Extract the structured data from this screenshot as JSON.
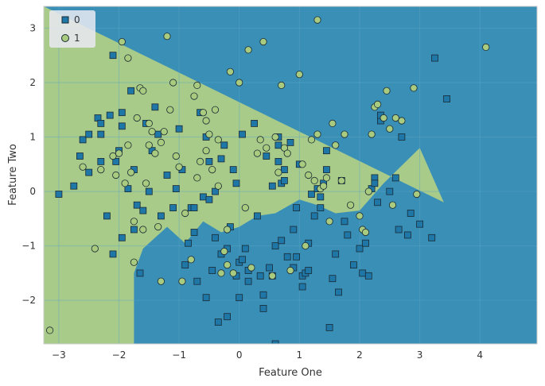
{
  "chart_data": {
    "type": "scatter",
    "title": "",
    "xlabel": "Feature One",
    "ylabel": "Feature Two",
    "xlim": [
      -3.25,
      4.95
    ],
    "ylim": [
      -2.8,
      3.4
    ],
    "xticks": [
      -3,
      -2,
      -1,
      0,
      1,
      2,
      3,
      4
    ],
    "xtick_labels": [
      "−3",
      "−2",
      "−1",
      "0",
      "1",
      "2",
      "3",
      "4"
    ],
    "yticks": [
      -2,
      -1,
      0,
      1,
      2,
      3
    ],
    "ytick_labels": [
      "−2",
      "−1",
      "0",
      "1",
      "2",
      "3"
    ],
    "grid": true,
    "legend_position": "top-left",
    "background_regions": {
      "class_0_color": "#3a8fb7",
      "class_1_color": "#a8cb8a",
      "boundary": [
        [
          3.4,
          -0.2
        ],
        [
          3.0,
          0.8
        ],
        [
          2.4,
          0.15
        ],
        [
          2.0,
          -0.35
        ],
        [
          1.6,
          -0.4
        ],
        [
          1.3,
          -0.25
        ],
        [
          1.0,
          -0.15
        ],
        [
          0.6,
          -0.4
        ],
        [
          0.3,
          -0.45
        ],
        [
          0.0,
          -0.65
        ],
        [
          -0.3,
          -0.75
        ],
        [
          -0.6,
          -0.55
        ],
        [
          -0.9,
          -0.95
        ],
        [
          -1.2,
          -0.65
        ],
        [
          -1.4,
          -0.85
        ],
        [
          -1.6,
          -1.05
        ],
        [
          -1.75,
          -1.5
        ],
        [
          -1.75,
          -2.8
        ]
      ]
    },
    "series": [
      {
        "name": "0",
        "marker": "square",
        "color": "#1f77a8",
        "points": [
          [
            -3.0,
            -0.05
          ],
          [
            -2.75,
            0.1
          ],
          [
            -2.65,
            0.65
          ],
          [
            -2.6,
            0.95
          ],
          [
            -2.5,
            1.05
          ],
          [
            -2.35,
            1.35
          ],
          [
            -2.3,
            1.25
          ],
          [
            -2.3,
            0.55
          ],
          [
            -2.3,
            1.05
          ],
          [
            -2.15,
            1.4
          ],
          [
            -2.1,
            2.5
          ],
          [
            -2.1,
            -1.15
          ],
          [
            -2.05,
            0.55
          ],
          [
            -2.0,
            0.75
          ],
          [
            -1.95,
            1.45
          ],
          [
            -1.95,
            1.2
          ],
          [
            -1.95,
            -0.85
          ],
          [
            -1.8,
            1.85
          ],
          [
            -1.75,
            0.4
          ],
          [
            -1.75,
            -0.7
          ],
          [
            -1.7,
            -0.25
          ],
          [
            -1.65,
            -1.5
          ],
          [
            -1.6,
            -0.35
          ],
          [
            -1.55,
            1.25
          ],
          [
            -1.5,
            0.0
          ],
          [
            -1.45,
            0.75
          ],
          [
            -1.4,
            1.55
          ],
          [
            -1.35,
            1.05
          ],
          [
            -1.3,
            -0.45
          ],
          [
            -1.2,
            0.3
          ],
          [
            -1.1,
            -0.3
          ],
          [
            -1.05,
            0.05
          ],
          [
            -1.0,
            1.15
          ],
          [
            -0.95,
            0.4
          ],
          [
            -0.9,
            -1.35
          ],
          [
            -0.85,
            -0.95
          ],
          [
            -0.8,
            -0.3
          ],
          [
            -0.75,
            -0.75
          ],
          [
            -0.7,
            -1.65
          ],
          [
            -0.65,
            1.45
          ],
          [
            -0.6,
            -0.1
          ],
          [
            -0.55,
            1.0
          ],
          [
            -0.5,
            0.55
          ],
          [
            -0.5,
            -0.15
          ],
          [
            -0.45,
            -1.45
          ],
          [
            -0.4,
            0.0
          ],
          [
            -0.4,
            -0.85
          ],
          [
            -0.35,
            -2.4
          ],
          [
            -0.3,
            -1.15
          ],
          [
            -0.3,
            0.6
          ],
          [
            -0.25,
            0.85
          ],
          [
            -0.2,
            -1.05
          ],
          [
            -0.15,
            -0.65
          ],
          [
            -0.1,
            0.4
          ],
          [
            -0.05,
            0.15
          ],
          [
            -0.05,
            -1.55
          ],
          [
            0.0,
            -1.3
          ],
          [
            0.0,
            -1.95
          ],
          [
            0.05,
            1.05
          ],
          [
            0.05,
            -1.25
          ],
          [
            0.1,
            -1.05
          ],
          [
            0.15,
            -1.45
          ],
          [
            0.15,
            -1.65
          ],
          [
            0.25,
            1.25
          ],
          [
            0.3,
            -0.45
          ],
          [
            0.35,
            -1.55
          ],
          [
            0.4,
            -1.9
          ],
          [
            0.4,
            -2.15
          ],
          [
            0.45,
            0.65
          ],
          [
            0.5,
            -1.4
          ],
          [
            0.55,
            0.1
          ],
          [
            0.6,
            -1.0
          ],
          [
            0.65,
            1.0
          ],
          [
            0.65,
            0.85
          ],
          [
            0.65,
            0.55
          ],
          [
            0.7,
            0.15
          ],
          [
            0.7,
            -0.9
          ],
          [
            0.75,
            0.4
          ],
          [
            0.75,
            0.2
          ],
          [
            0.8,
            -1.2
          ],
          [
            0.85,
            0.9
          ],
          [
            0.9,
            -1.4
          ],
          [
            0.9,
            -0.7
          ],
          [
            0.95,
            -0.3
          ],
          [
            0.95,
            -1.2
          ],
          [
            1.0,
            0.5
          ],
          [
            1.05,
            -1.55
          ],
          [
            1.1,
            -1.5
          ],
          [
            1.15,
            -1.45
          ],
          [
            1.15,
            -0.95
          ],
          [
            1.2,
            -0.05
          ],
          [
            1.25,
            -0.45
          ],
          [
            1.3,
            0.05
          ],
          [
            1.35,
            -0.1
          ],
          [
            1.35,
            -0.3
          ],
          [
            1.4,
            0.15
          ],
          [
            1.45,
            0.4
          ],
          [
            1.45,
            0.75
          ],
          [
            1.5,
            -2.5
          ],
          [
            1.55,
            -1.6
          ],
          [
            1.6,
            -1.15
          ],
          [
            1.65,
            -1.85
          ],
          [
            1.7,
            0.2
          ],
          [
            1.75,
            -0.55
          ],
          [
            1.8,
            -0.8
          ],
          [
            1.9,
            -1.35
          ],
          [
            2.0,
            -1.05
          ],
          [
            2.05,
            -1.5
          ],
          [
            2.1,
            -0.95
          ],
          [
            2.15,
            -1.55
          ],
          [
            2.2,
            0.05
          ],
          [
            2.25,
            0.25
          ],
          [
            2.25,
            0.15
          ],
          [
            2.3,
            -0.2
          ],
          [
            2.35,
            1.3
          ],
          [
            2.35,
            1.4
          ],
          [
            2.5,
            0.0
          ],
          [
            2.6,
            0.25
          ],
          [
            2.65,
            -0.7
          ],
          [
            2.7,
            1.0
          ],
          [
            2.8,
            -0.8
          ],
          [
            2.85,
            -0.4
          ],
          [
            3.0,
            -0.6
          ],
          [
            3.2,
            -0.85
          ],
          [
            3.25,
            2.45
          ],
          [
            3.45,
            1.7
          ],
          [
            -0.55,
            -1.95
          ],
          [
            0.6,
            -2.8
          ],
          [
            -0.75,
            -0.3
          ],
          [
            -2.5,
            0.35
          ],
          [
            -1.85,
            0.05
          ],
          [
            -2.2,
            -0.45
          ],
          [
            -0.2,
            -2.3
          ],
          [
            0.55,
            -1.55
          ],
          [
            1.05,
            -1.75
          ]
        ]
      },
      {
        "name": "1",
        "marker": "circle",
        "color": "#a8cb7f",
        "points": [
          [
            -3.15,
            -2.55
          ],
          [
            -2.6,
            0.45
          ],
          [
            -2.4,
            -1.05
          ],
          [
            -2.3,
            0.4
          ],
          [
            -2.1,
            0.65
          ],
          [
            -2.05,
            0.3
          ],
          [
            -2.0,
            0.7
          ],
          [
            -1.95,
            2.75
          ],
          [
            -1.9,
            0.15
          ],
          [
            -1.85,
            2.45
          ],
          [
            -1.85,
            0.85
          ],
          [
            -1.8,
            0.35
          ],
          [
            -1.75,
            -0.55
          ],
          [
            -1.75,
            -1.3
          ],
          [
            -1.7,
            1.35
          ],
          [
            -1.65,
            1.9
          ],
          [
            -1.6,
            1.85
          ],
          [
            -1.55,
            0.15
          ],
          [
            -1.5,
            0.85
          ],
          [
            -1.5,
            1.25
          ],
          [
            -1.45,
            1.1
          ],
          [
            -1.4,
            0.7
          ],
          [
            -1.35,
            -0.65
          ],
          [
            -1.3,
            0.9
          ],
          [
            -1.25,
            1.1
          ],
          [
            -1.2,
            2.85
          ],
          [
            -1.15,
            1.5
          ],
          [
            -1.1,
            2.0
          ],
          [
            -1.05,
            0.65
          ],
          [
            -1.0,
            0.45
          ],
          [
            -0.95,
            -1.65
          ],
          [
            -0.9,
            -0.4
          ],
          [
            -0.8,
            -1.25
          ],
          [
            -0.75,
            1.75
          ],
          [
            -0.7,
            1.95
          ],
          [
            -0.7,
            0.25
          ],
          [
            -0.65,
            0.55
          ],
          [
            -0.6,
            1.45
          ],
          [
            -0.55,
            1.3
          ],
          [
            -0.55,
            0.75
          ],
          [
            -0.5,
            1.05
          ],
          [
            -0.45,
            0.4
          ],
          [
            -0.4,
            1.5
          ],
          [
            -0.35,
            0.1
          ],
          [
            -0.3,
            -1.5
          ],
          [
            -0.25,
            -1.1
          ],
          [
            -0.2,
            -1.35
          ],
          [
            -0.15,
            2.2
          ],
          [
            -0.1,
            -1.5
          ],
          [
            0.0,
            2.0
          ],
          [
            0.1,
            -0.3
          ],
          [
            0.15,
            2.6
          ],
          [
            0.2,
            -1.4
          ],
          [
            0.3,
            0.7
          ],
          [
            0.35,
            0.95
          ],
          [
            0.4,
            2.75
          ],
          [
            0.45,
            0.8
          ],
          [
            0.55,
            -1.55
          ],
          [
            0.6,
            1.0
          ],
          [
            0.65,
            0.35
          ],
          [
            0.7,
            1.95
          ],
          [
            0.75,
            0.8
          ],
          [
            0.8,
            0.7
          ],
          [
            0.85,
            -1.45
          ],
          [
            1.0,
            2.15
          ],
          [
            1.05,
            0.5
          ],
          [
            1.1,
            -1.0
          ],
          [
            1.15,
            0.3
          ],
          [
            1.2,
            0.95
          ],
          [
            1.25,
            0.2
          ],
          [
            1.3,
            1.05
          ],
          [
            1.3,
            3.15
          ],
          [
            1.35,
            0.05
          ],
          [
            1.4,
            0.1
          ],
          [
            1.45,
            0.25
          ],
          [
            1.5,
            -0.55
          ],
          [
            1.55,
            1.25
          ],
          [
            1.6,
            0.85
          ],
          [
            1.75,
            1.05
          ],
          [
            1.85,
            -0.25
          ],
          [
            2.0,
            -0.45
          ],
          [
            2.05,
            -0.7
          ],
          [
            2.1,
            -0.75
          ],
          [
            2.15,
            0.0
          ],
          [
            2.2,
            1.05
          ],
          [
            2.25,
            1.55
          ],
          [
            2.3,
            1.6
          ],
          [
            2.4,
            1.35
          ],
          [
            2.45,
            1.85
          ],
          [
            2.5,
            1.15
          ],
          [
            2.55,
            -0.25
          ],
          [
            2.6,
            1.35
          ],
          [
            2.7,
            1.3
          ],
          [
            2.9,
            1.9
          ],
          [
            2.95,
            -0.05
          ],
          [
            4.1,
            2.65
          ],
          [
            -1.6,
            -0.7
          ],
          [
            -1.3,
            -1.65
          ],
          [
            1.7,
            0.2
          ],
          [
            -0.35,
            0.95
          ],
          [
            -0.2,
            -0.7
          ]
        ]
      }
    ]
  },
  "legend": {
    "items": [
      {
        "label": "0",
        "marker": "square"
      },
      {
        "label": "1",
        "marker": "circle"
      }
    ]
  },
  "colors": {
    "grid": "#5aa6c4",
    "plot_border": "#cccccc",
    "marker_edge": "#1a2a33"
  }
}
